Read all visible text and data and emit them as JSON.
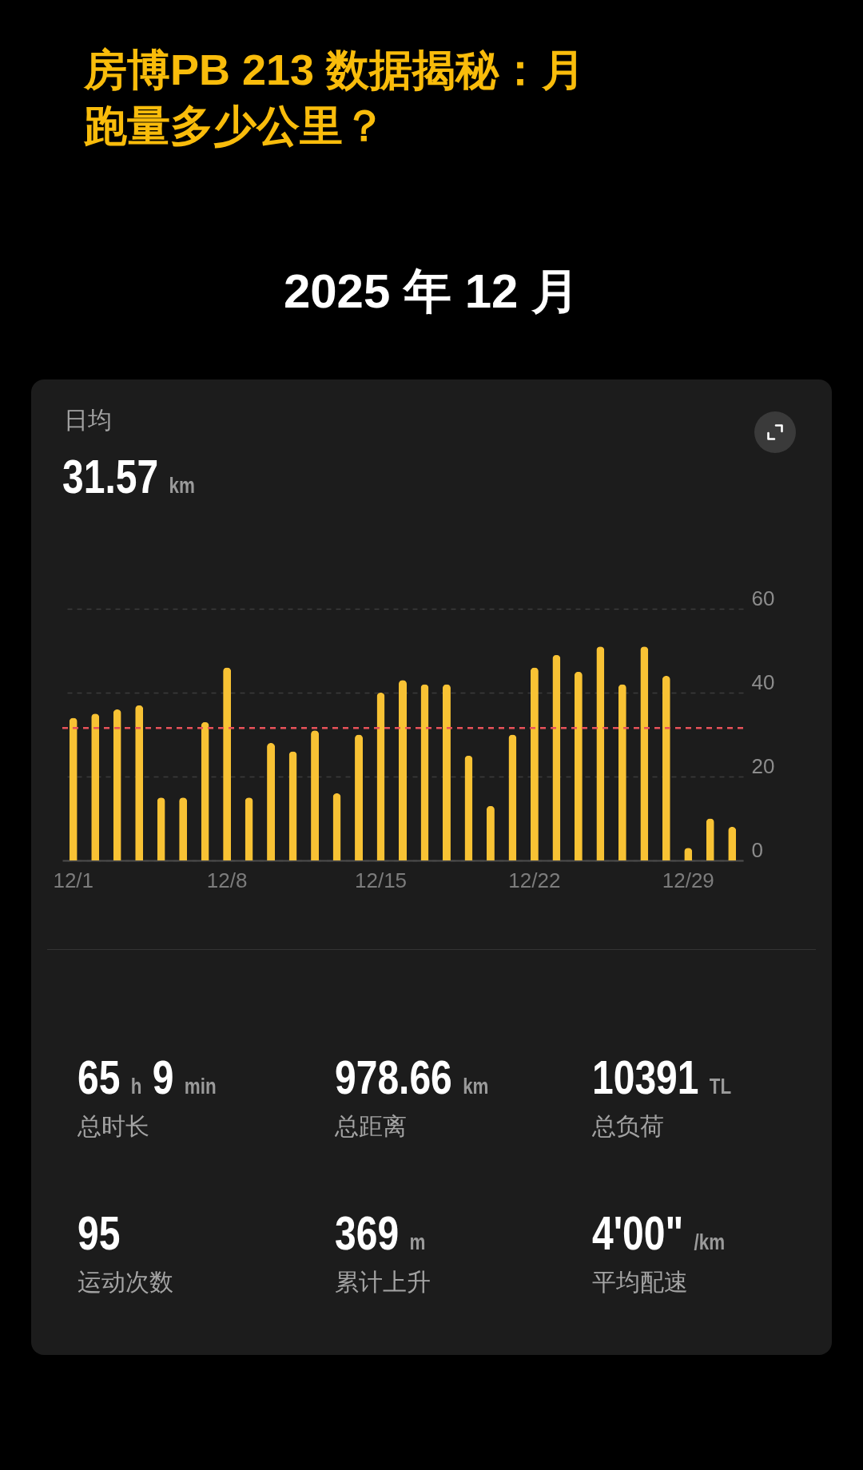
{
  "chart_data": {
    "type": "bar",
    "title": "房博PB 213 数据揭秘：月跑量多少公里？",
    "subtitle": "2025 年 12 月",
    "categories": [
      "12/1",
      null,
      null,
      null,
      null,
      null,
      null,
      "12/8",
      null,
      null,
      null,
      null,
      null,
      null,
      "12/15",
      null,
      null,
      null,
      null,
      null,
      null,
      "12/22",
      null,
      null,
      null,
      null,
      null,
      null,
      "12/29",
      null,
      null
    ],
    "values": [
      34,
      35,
      36,
      37,
      15,
      15,
      33,
      46,
      15,
      28,
      26,
      31,
      16,
      30,
      40,
      43,
      42,
      42,
      25,
      13,
      30,
      46,
      49,
      45,
      51,
      42,
      51,
      44,
      3,
      10,
      8
    ],
    "color": "#f8c234",
    "ylim": [
      0,
      60
    ],
    "yticks": [
      0,
      20,
      40,
      60
    ],
    "grid": "y",
    "ref_lines": [
      {
        "axis": "y",
        "value": 31.57,
        "color": "#e8525a",
        "line_style": "dashed"
      }
    ],
    "annotations": [
      "日均",
      "31.57 km",
      "65 h 9 min",
      "总时长",
      "978.66 km",
      "总距离",
      "10391 TL",
      "总负荷",
      "95",
      "运动次数",
      "369 m",
      "累计上升",
      "4'00\" /km",
      "平均配速"
    ]
  }
}
